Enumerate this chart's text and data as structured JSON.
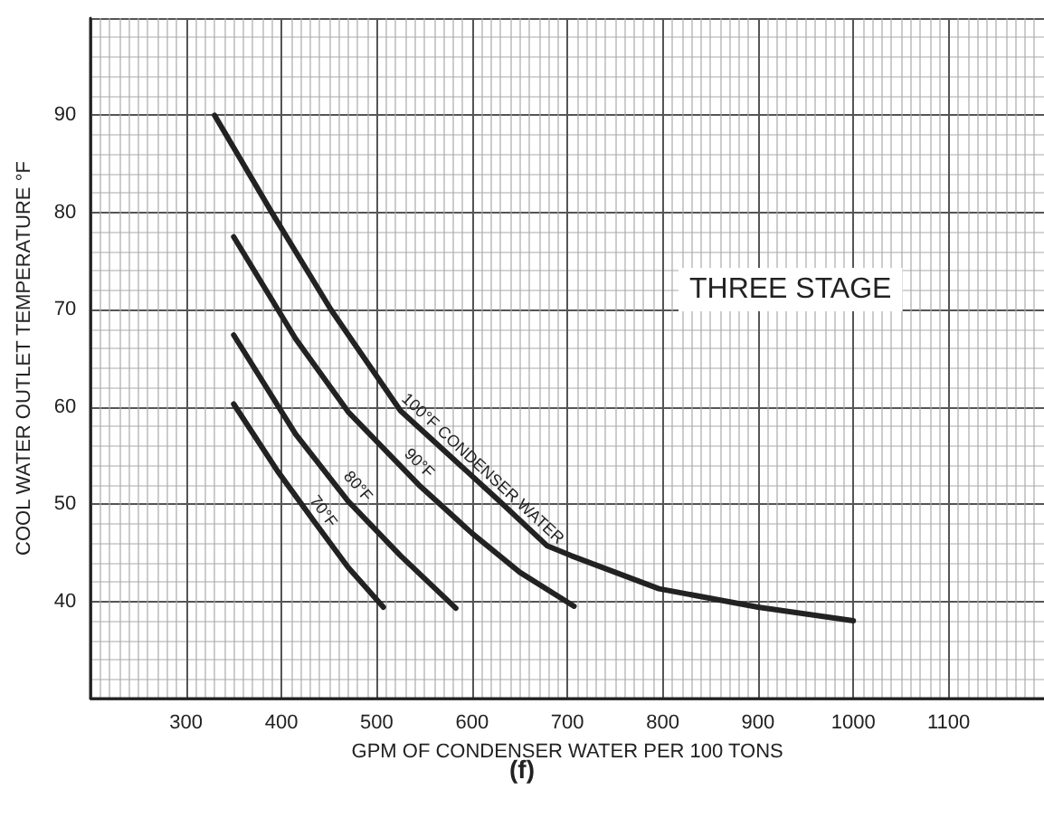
{
  "chart_data": {
    "type": "line",
    "xlabel": "GPM OF CONDENSER WATER PER 100 TONS",
    "ylabel": "COOL WATER OUTLET TEMPERATURE °F",
    "annotations": [
      "THREE STAGE",
      "(f)"
    ],
    "xlim": [
      200,
      1200
    ],
    "xticks": [
      300,
      400,
      500,
      600,
      700,
      800,
      900,
      1000,
      1100
    ],
    "ylim": [
      30,
      100
    ],
    "yticks": [
      40,
      50,
      60,
      70,
      80,
      90
    ],
    "grid": true,
    "legend": false,
    "marker": "none",
    "line_style": "solid",
    "series": [
      {
        "name": "100°F CONDENSER WATER",
        "color": "#222222",
        "x": [
          330,
          390,
          452,
          525,
          629,
          679,
          704,
          796,
          900,
          1000
        ],
        "values": [
          90,
          80,
          70,
          59.6,
          50.3,
          45.7,
          44.7,
          41.3,
          39.4,
          38
        ]
      },
      {
        "name": "90°F",
        "color": "#222222",
        "x": [
          350,
          415,
          470,
          544,
          600,
          650,
          707
        ],
        "values": [
          77.5,
          67,
          59.5,
          52,
          47,
          43,
          39.5
        ]
      },
      {
        "name": "80°F",
        "color": "#222222",
        "x": [
          350,
          415,
          470,
          525,
          583
        ],
        "values": [
          67.4,
          57.2,
          50.3,
          44.7,
          39.3
        ]
      },
      {
        "name": "70°F",
        "color": "#222222",
        "x": [
          350,
          396,
          433,
          470,
          507
        ],
        "values": [
          60.3,
          53.4,
          48.4,
          43.5,
          39.4
        ]
      }
    ]
  }
}
